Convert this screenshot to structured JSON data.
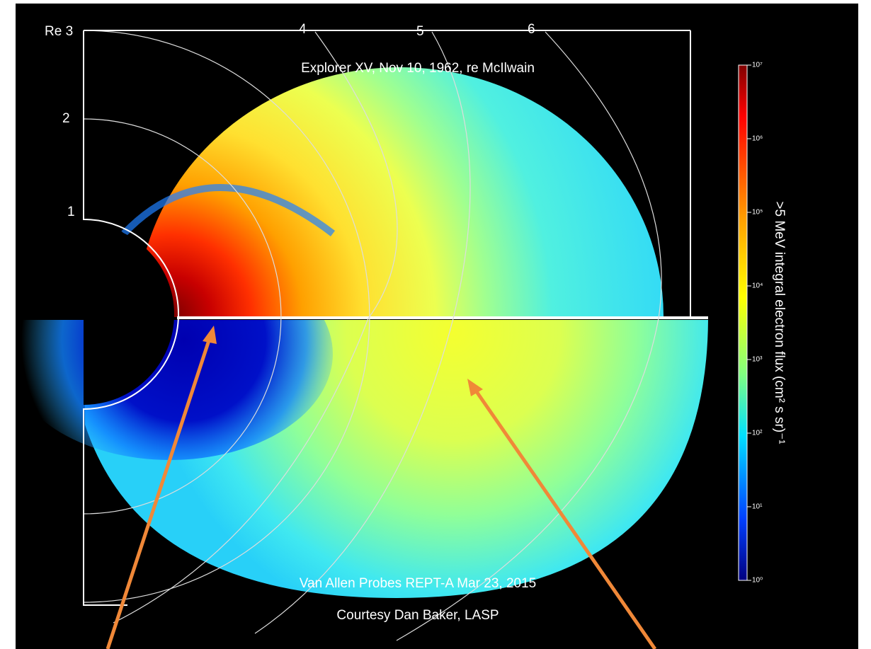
{
  "figure": {
    "axis_labels": [
      "Re 3",
      "2",
      "1"
    ],
    "shell_labels": [
      "4",
      "5",
      "6"
    ],
    "top_caption": "Explorer XV, Nov 10, 1962, re McIlwain",
    "bottom_caption": "Van Allen Probes REPT-A Mar 23, 2015",
    "credit": "Courtesy Dan Baker, LASP",
    "colorbar": {
      "title": ">5 MeV integral electron flux (cm² s sr)⁻¹",
      "tick_labels": [
        "10⁷",
        "10⁶",
        "10⁵",
        "10⁴",
        "10³",
        "10²",
        "10¹",
        "10⁰"
      ]
    }
  }
}
